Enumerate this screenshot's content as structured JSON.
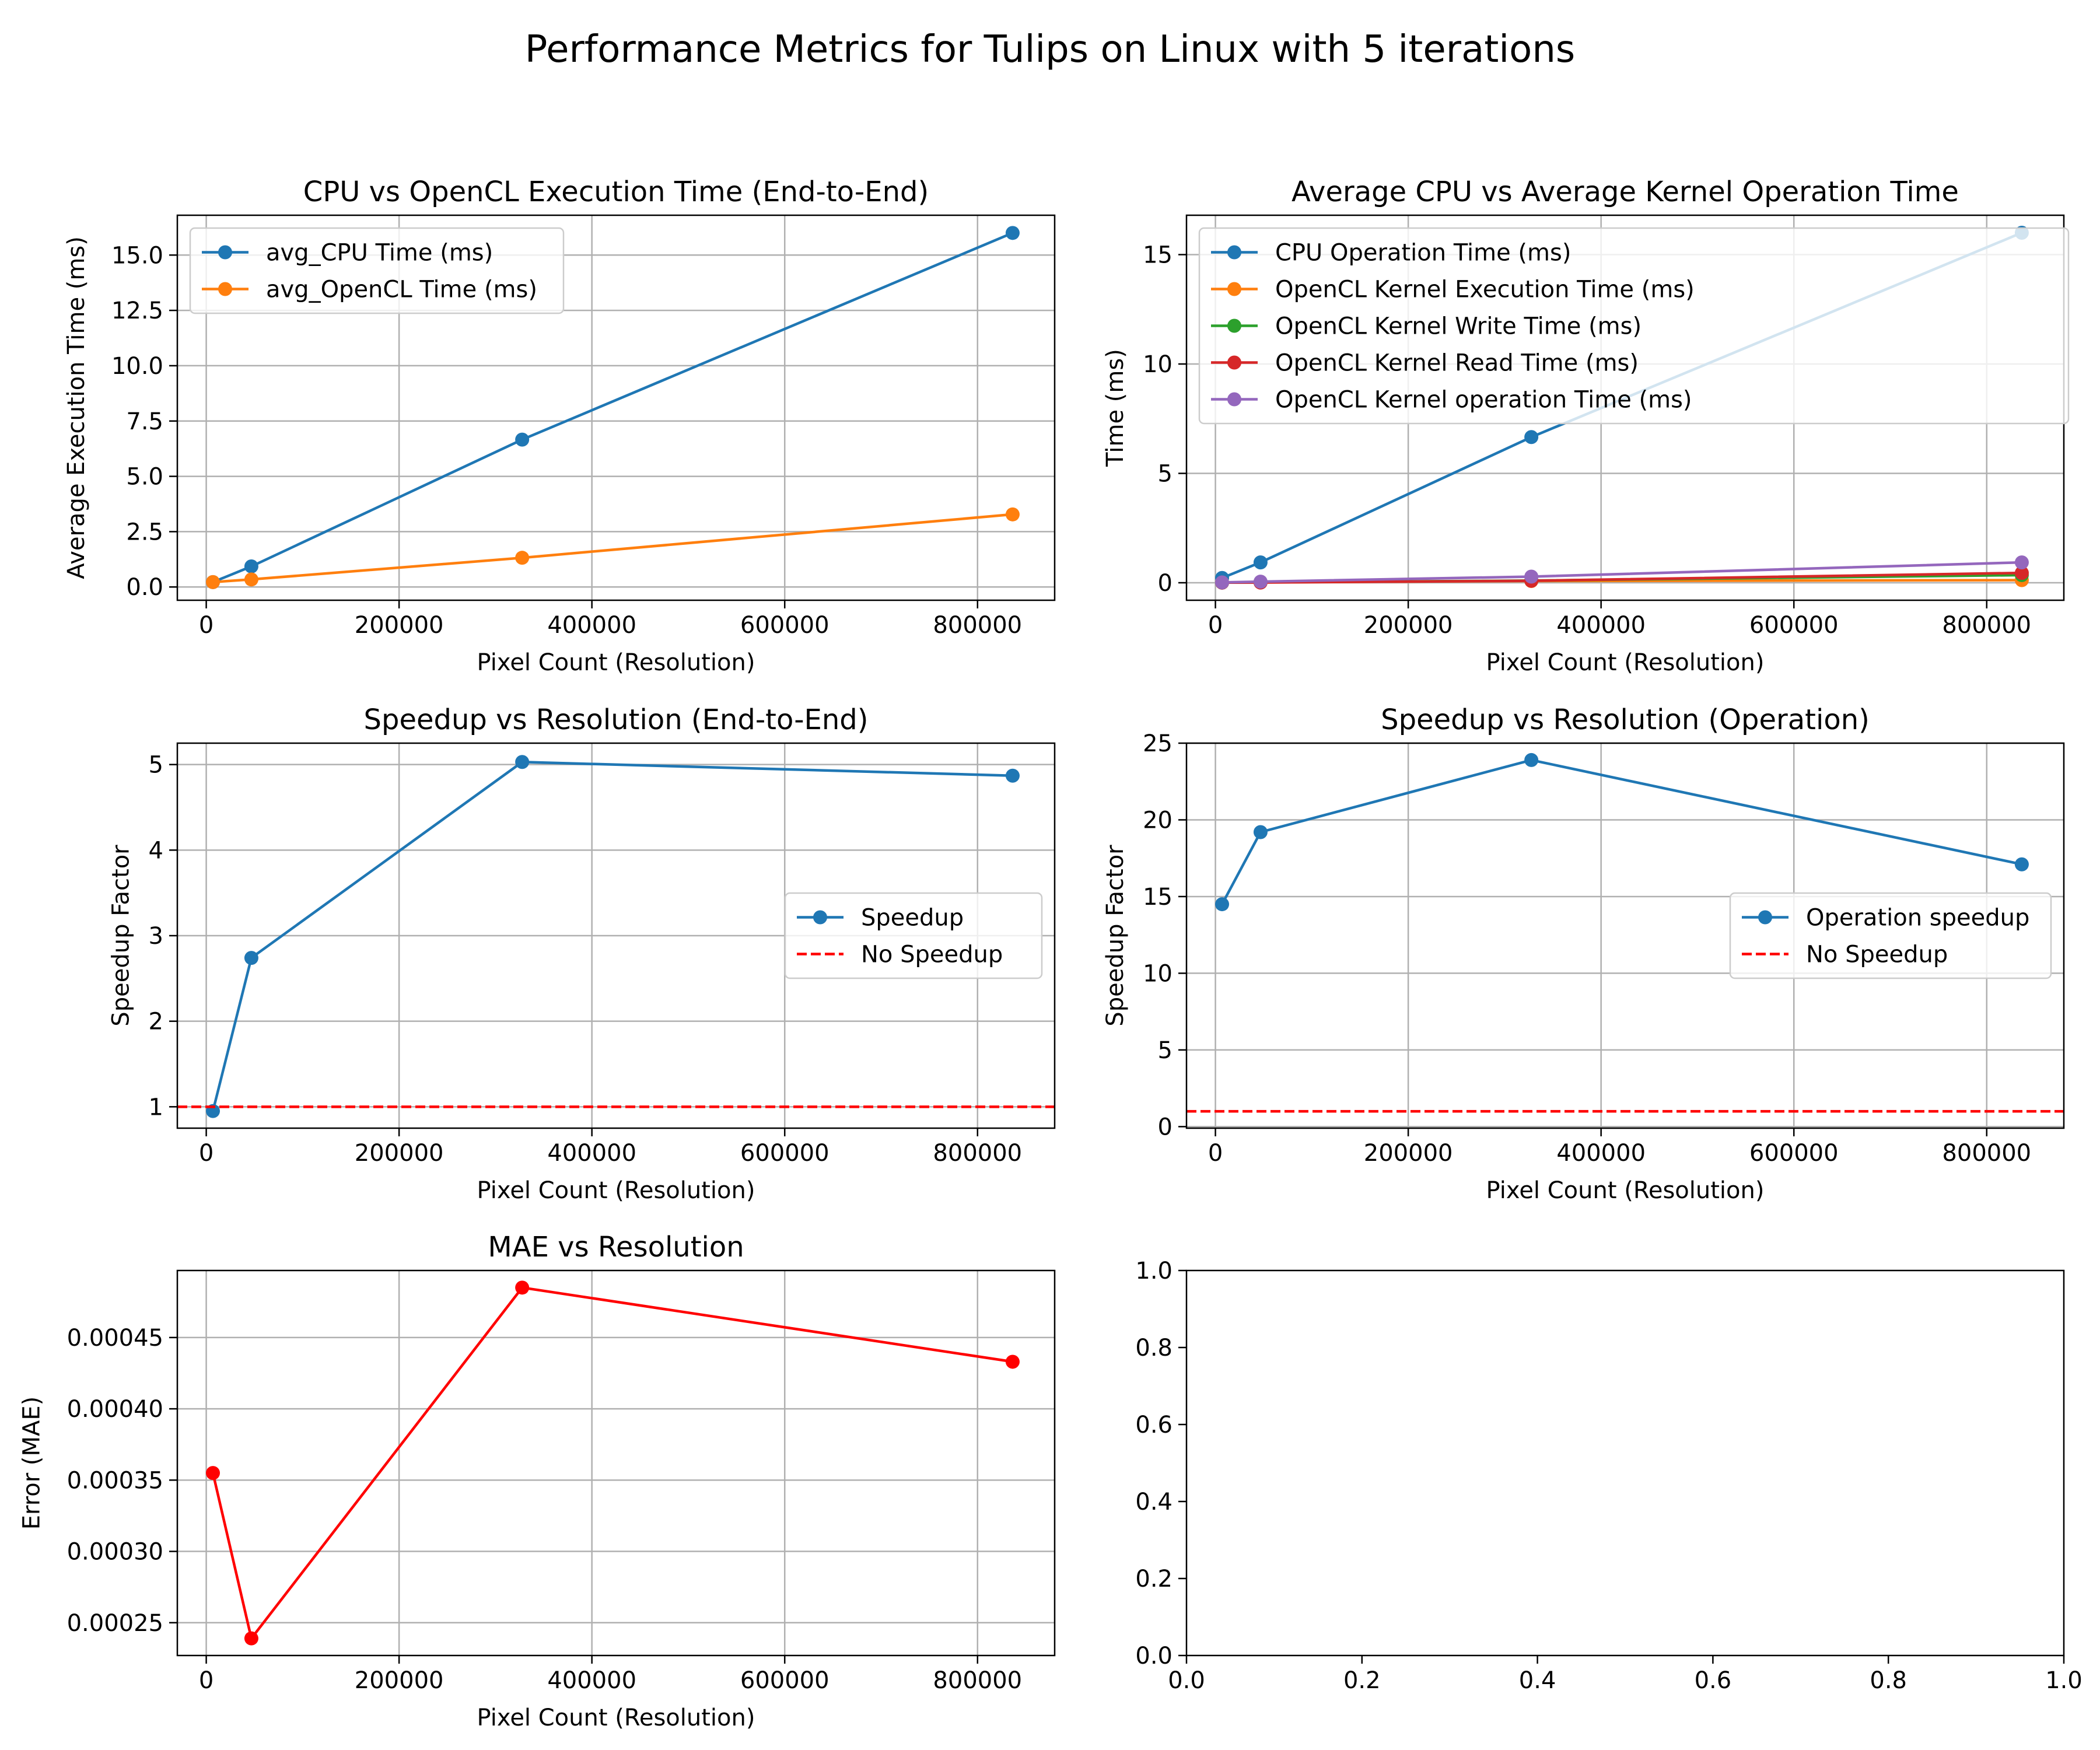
{
  "figure": {
    "suptitle": "Performance Metrics for Tulips on Linux with 5 iterations"
  },
  "chart_data": [
    {
      "type": "line",
      "title": "CPU vs OpenCL Execution Time (End-to-End)",
      "xlabel": "Pixel Count (Resolution)",
      "ylabel": "Average Execution Time (ms)",
      "xlim": [
        -30000,
        880000
      ],
      "ylim": [
        -0.6,
        16.8
      ],
      "xticks": [
        0,
        200000,
        400000,
        600000,
        800000
      ],
      "xtick_labels": [
        "0",
        "200000",
        "400000",
        "600000",
        "800000"
      ],
      "yticks": [
        0,
        2.5,
        5,
        7.5,
        10,
        12.5,
        15
      ],
      "ytick_labels": [
        "0.0",
        "2.5",
        "5.0",
        "7.5",
        "10.0",
        "12.5",
        "15.0"
      ],
      "grid": true,
      "legend": "upper-left",
      "x": [
        6912,
        46800,
        327680,
        836400
      ],
      "series": [
        {
          "name": "avg_CPU Time (ms)",
          "color": "#1f77b4",
          "style": "solid",
          "marker": true,
          "values": [
            0.22,
            0.93,
            6.66,
            16.0
          ]
        },
        {
          "name": "avg_OpenCL Time (ms)",
          "color": "#ff7f0e",
          "style": "solid",
          "marker": true,
          "values": [
            0.22,
            0.34,
            1.32,
            3.28
          ]
        }
      ]
    },
    {
      "type": "line",
      "title": "Average CPU vs Average Kernel Operation Time",
      "xlabel": "Pixel Count (Resolution)",
      "ylabel": "Time (ms)",
      "xlim": [
        -30000,
        880000
      ],
      "ylim": [
        -0.8,
        16.8
      ],
      "xticks": [
        0,
        200000,
        400000,
        600000,
        800000
      ],
      "xtick_labels": [
        "0",
        "200000",
        "400000",
        "600000",
        "800000"
      ],
      "yticks": [
        0,
        5,
        10,
        15
      ],
      "ytick_labels": [
        "0",
        "5",
        "10",
        "15"
      ],
      "grid": true,
      "legend": "upper-left",
      "x": [
        6912,
        46800,
        327680,
        836400
      ],
      "series": [
        {
          "name": "CPU Operation Time (ms)",
          "color": "#1f77b4",
          "style": "solid",
          "marker": true,
          "values": [
            0.22,
            0.93,
            6.66,
            16.0
          ]
        },
        {
          "name": "OpenCL Kernel Execution Time (ms)",
          "color": "#ff7f0e",
          "style": "solid",
          "marker": true,
          "values": [
            0.01,
            0.02,
            0.08,
            0.12
          ]
        },
        {
          "name": "OpenCL Kernel Write Time (ms)",
          "color": "#2ca02c",
          "style": "solid",
          "marker": true,
          "values": [
            0.005,
            0.02,
            0.1,
            0.35
          ]
        },
        {
          "name": "OpenCL Kernel Read Time (ms)",
          "color": "#d62728",
          "style": "solid",
          "marker": true,
          "values": [
            0.005,
            0.01,
            0.09,
            0.45
          ]
        },
        {
          "name": "OpenCL Kernel operation Time (ms)",
          "color": "#9467bd",
          "style": "solid",
          "marker": true,
          "values": [
            0.015,
            0.05,
            0.28,
            0.93
          ]
        }
      ]
    },
    {
      "type": "line",
      "title": "Speedup vs Resolution (End-to-End)",
      "xlabel": "Pixel Count (Resolution)",
      "ylabel": "Speedup Factor",
      "xlim": [
        -30000,
        880000
      ],
      "ylim": [
        0.75,
        5.25
      ],
      "xticks": [
        0,
        200000,
        400000,
        600000,
        800000
      ],
      "xtick_labels": [
        "0",
        "200000",
        "400000",
        "600000",
        "800000"
      ],
      "yticks": [
        1,
        2,
        3,
        4,
        5
      ],
      "ytick_labels": [
        "1",
        "2",
        "3",
        "4",
        "5"
      ],
      "grid": true,
      "legend": "center-right",
      "x": [
        6912,
        46800,
        327680,
        836400
      ],
      "series": [
        {
          "name": "Speedup",
          "color": "#1f77b4",
          "style": "solid",
          "marker": true,
          "values": [
            0.95,
            2.74,
            5.03,
            4.87
          ]
        },
        {
          "name": "No Speedup",
          "color": "#ff0000",
          "style": "dashed",
          "marker": false,
          "hline": 1
        }
      ]
    },
    {
      "type": "line",
      "title": "Speedup vs Resolution (Operation)",
      "xlabel": "Pixel Count (Resolution)",
      "ylabel": "Speedup Factor",
      "xlim": [
        -30000,
        880000
      ],
      "ylim": [
        -0.1,
        25.0
      ],
      "xticks": [
        0,
        200000,
        400000,
        600000,
        800000
      ],
      "xtick_labels": [
        "0",
        "200000",
        "400000",
        "600000",
        "800000"
      ],
      "yticks": [
        0,
        5,
        10,
        15,
        20,
        25
      ],
      "ytick_labels": [
        "0",
        "5",
        "10",
        "15",
        "20",
        "25"
      ],
      "grid": true,
      "legend": "center-right",
      "x": [
        6912,
        46800,
        327680,
        836400
      ],
      "series": [
        {
          "name": "Operation speedup",
          "color": "#1f77b4",
          "style": "solid",
          "marker": true,
          "values": [
            14.5,
            19.2,
            23.9,
            17.1
          ]
        },
        {
          "name": "No Speedup",
          "color": "#ff0000",
          "style": "dashed",
          "marker": false,
          "hline": 1
        }
      ]
    },
    {
      "type": "line",
      "title": "MAE vs Resolution",
      "xlabel": "Pixel Count (Resolution)",
      "ylabel": "Error (MAE)",
      "xlim": [
        -30000,
        880000
      ],
      "ylim": [
        0.000227,
        0.000497
      ],
      "xticks": [
        0,
        200000,
        400000,
        600000,
        800000
      ],
      "xtick_labels": [
        "0",
        "200000",
        "400000",
        "600000",
        "800000"
      ],
      "yticks": [
        0.00025,
        0.0003,
        0.00035,
        0.0004,
        0.00045
      ],
      "ytick_labels": [
        "0.00025",
        "0.00030",
        "0.00035",
        "0.00040",
        "0.00045"
      ],
      "grid": true,
      "legend": "none",
      "x": [
        6912,
        46800,
        327680,
        836400
      ],
      "series": [
        {
          "color": "#ff0000",
          "style": "solid",
          "marker": true,
          "values": [
            0.000355,
            0.000239,
            0.000485,
            0.000433
          ]
        }
      ]
    },
    {
      "type": "line",
      "title": "",
      "xlabel": "",
      "ylabel": "",
      "xlim": [
        0,
        1
      ],
      "ylim": [
        0,
        1
      ],
      "xticks": [
        0,
        0.2,
        0.4,
        0.6,
        0.8,
        1.0
      ],
      "xtick_labels": [
        "0.0",
        "0.2",
        "0.4",
        "0.6",
        "0.8",
        "1.0"
      ],
      "yticks": [
        0,
        0.2,
        0.4,
        0.6,
        0.8,
        1.0
      ],
      "ytick_labels": [
        "0.0",
        "0.2",
        "0.4",
        "0.6",
        "0.8",
        "1.0"
      ],
      "grid": false,
      "legend": "none",
      "x": [],
      "series": []
    }
  ]
}
